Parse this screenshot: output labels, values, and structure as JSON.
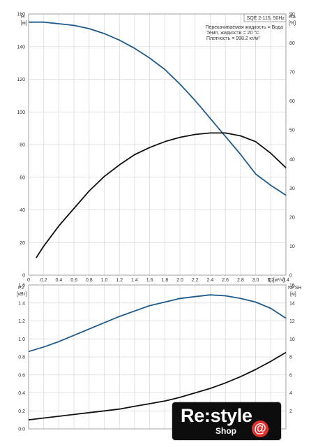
{
  "chart_data": [
    {
      "type": "line",
      "panel": "top",
      "title": "SQE 2-115, 50Hz",
      "info_lines": [
        "Перекачиваемая жидкость = Вода",
        "Темп. жидкости = 20 °C",
        "Плотность = 998.2 кг/м³"
      ],
      "xlabel": "Q [м³/ч]",
      "xlim": [
        0,
        3.4
      ],
      "x_ticks": [
        "0",
        "0.2",
        "0.4",
        "0.6",
        "0.8",
        "1.0",
        "1.2",
        "1.4",
        "1.6",
        "1.8",
        "2.0",
        "2.2",
        "2.4",
        "2.6",
        "2.8",
        "3.0",
        "3.2",
        "3.4"
      ],
      "y_left": {
        "label": "H",
        "unit": "[м]",
        "lim": [
          0,
          160
        ],
        "ticks": [
          "0",
          "20",
          "40",
          "60",
          "80",
          "100",
          "120",
          "140",
          "160"
        ]
      },
      "y_right": {
        "label": "eta",
        "unit": "[%]",
        "lim": [
          0,
          90
        ],
        "ticks": [
          "0",
          "10",
          "20",
          "30",
          "40",
          "50",
          "60",
          "70",
          "80",
          "90"
        ]
      },
      "series": [
        {
          "axis": "left",
          "color": "#1f5a8c",
          "x": [
            0,
            0.2,
            0.4,
            0.6,
            0.8,
            1.0,
            1.2,
            1.4,
            1.6,
            1.8,
            2.0,
            2.2,
            2.4,
            2.6,
            2.8,
            3.0,
            3.2,
            3.4
          ],
          "y": [
            155,
            155,
            154,
            153,
            151,
            148,
            144,
            139,
            133,
            126,
            117,
            107,
            96,
            85,
            74,
            62,
            55,
            49
          ]
        },
        {
          "axis": "right",
          "color": "#111111",
          "x": [
            0.1,
            0.2,
            0.4,
            0.6,
            0.8,
            1.0,
            1.2,
            1.4,
            1.6,
            1.8,
            2.0,
            2.2,
            2.4,
            2.6,
            2.8,
            3.0,
            3.2,
            3.4
          ],
          "y": [
            6,
            10,
            17,
            23,
            29,
            34,
            38,
            41.5,
            44,
            46,
            47.5,
            48.5,
            49,
            49,
            48,
            46,
            42,
            37
          ]
        }
      ],
      "grid": true
    },
    {
      "type": "line",
      "panel": "bottom",
      "xlim": [
        0,
        3.4
      ],
      "y_left": {
        "label": "P2",
        "unit": "[кВт]",
        "lim": [
          0,
          1.6
        ],
        "ticks": [
          "0.0",
          "0.2",
          "0.4",
          "0.6",
          "0.8",
          "1.0",
          "1.2",
          "1.4",
          "1.6"
        ]
      },
      "y_right": {
        "label": "NPSH",
        "unit": "[м]",
        "lim": [
          0,
          16
        ],
        "ticks": [
          "2",
          "4",
          "6",
          "8",
          "10",
          "12",
          "14",
          "16"
        ]
      },
      "series": [
        {
          "axis": "left",
          "color": "#1f5a8c",
          "x": [
            0,
            0.2,
            0.4,
            0.6,
            0.8,
            1.0,
            1.2,
            1.4,
            1.6,
            1.8,
            2.0,
            2.2,
            2.4,
            2.6,
            2.8,
            3.0,
            3.2,
            3.4
          ],
          "y": [
            0.86,
            0.91,
            0.97,
            1.04,
            1.11,
            1.18,
            1.25,
            1.31,
            1.37,
            1.41,
            1.45,
            1.47,
            1.49,
            1.48,
            1.45,
            1.41,
            1.34,
            1.23
          ]
        },
        {
          "axis": "left",
          "color": "#111111",
          "x": [
            0,
            0.2,
            0.4,
            0.6,
            0.8,
            1.0,
            1.2,
            1.4,
            1.6,
            1.8,
            2.0,
            2.2,
            2.4,
            2.6,
            2.8,
            3.0,
            3.2,
            3.4
          ],
          "y": [
            0.1,
            0.12,
            0.14,
            0.16,
            0.18,
            0.2,
            0.22,
            0.25,
            0.28,
            0.31,
            0.35,
            0.4,
            0.45,
            0.51,
            0.58,
            0.66,
            0.75,
            0.85
          ]
        }
      ],
      "grid": true
    }
  ],
  "logo": {
    "main": "Re:style",
    "sub": "Shop",
    "mark": "@"
  }
}
